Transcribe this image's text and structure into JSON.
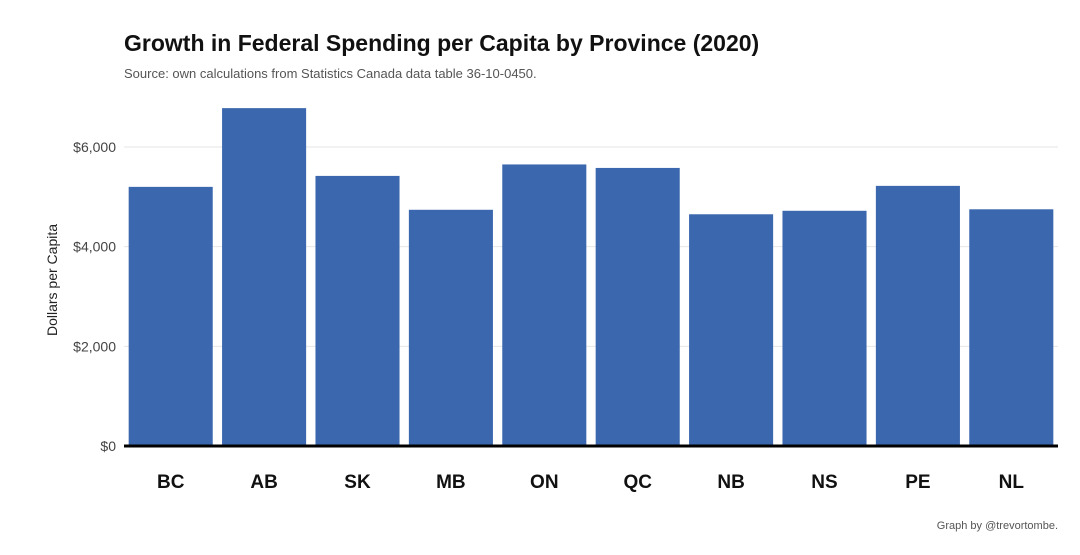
{
  "chart_data": {
    "type": "bar",
    "title": "Growth in Federal Spending per Capita by Province (2020)",
    "subtitle": "Source: own calculations from Statistics Canada data table 36-10-0450.",
    "caption": "Graph by @trevortombe.",
    "xlabel": "",
    "ylabel": "Dollars per Capita",
    "categories": [
      "BC",
      "AB",
      "SK",
      "MB",
      "ON",
      "QC",
      "NB",
      "NS",
      "PE",
      "NL"
    ],
    "values": [
      5200,
      6780,
      5420,
      4740,
      5650,
      5580,
      4650,
      4720,
      5220,
      4750
    ],
    "ylim": [
      0,
      7000
    ],
    "yticks": [
      0,
      2000,
      4000,
      6000
    ],
    "ytick_labels": [
      "$0",
      "$2,000",
      "$4,000",
      "$6,000"
    ],
    "grid": true,
    "legend": "none",
    "bar_color": "#3A67AE"
  }
}
